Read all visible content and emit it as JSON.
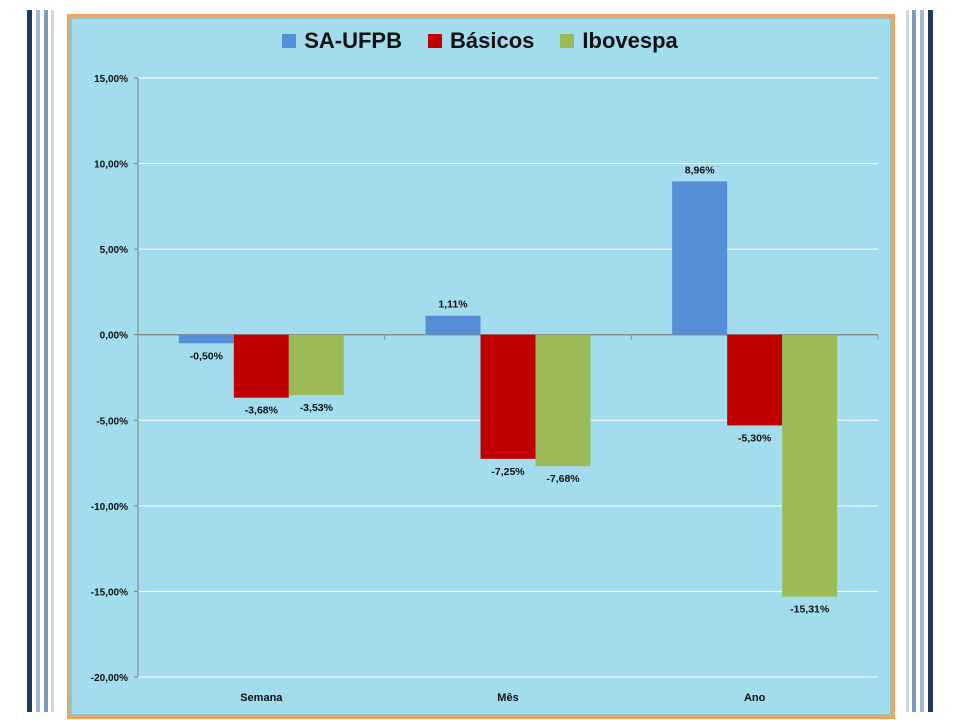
{
  "chart_data": {
    "type": "bar",
    "categories": [
      "Semana",
      "Mês",
      "Ano"
    ],
    "series": [
      {
        "name": "SA-UFPB",
        "color": "#558ed5",
        "values": [
          -0.5,
          1.11,
          8.96
        ],
        "labels": [
          "-0,50%",
          "1,11%",
          "8,96%"
        ]
      },
      {
        "name": "Básicos",
        "color": "#c00000",
        "values": [
          -3.68,
          -7.25,
          -5.3
        ],
        "labels": [
          "-3,68%",
          "-7,25%",
          "-5,30%"
        ]
      },
      {
        "name": "Ibovespa",
        "color": "#9bbb59",
        "values": [
          -3.53,
          -7.68,
          -15.31
        ],
        "labels": [
          "-3,53%",
          "-7,68%",
          "-15,31%"
        ]
      }
    ],
    "ylim": [
      -20,
      15
    ],
    "yticks": [
      15,
      10,
      5,
      0,
      -5,
      -10,
      -15,
      -20
    ],
    "ytick_labels": [
      "15,00%",
      "10,00%",
      "5,00%",
      "0,00%",
      "-5,00%",
      "-10,00%",
      "-15,00%",
      "-20,00%"
    ],
    "grid": true,
    "legend_position": "top"
  },
  "colors": {
    "panel_background": "#a3dcec",
    "panel_border": "#f0a35a",
    "gridline": "#ffffff"
  }
}
